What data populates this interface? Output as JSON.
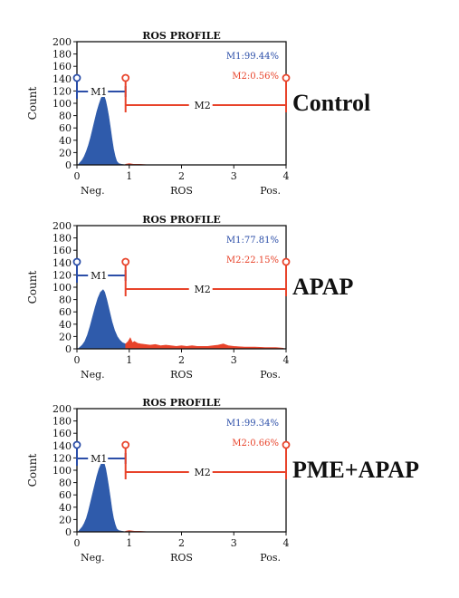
{
  "colors": {
    "m1": "#2b4ea8",
    "m2": "#e8432a",
    "hist": "#2f5bab",
    "hist_m2": "#e8432a",
    "axis": "#111111"
  },
  "chart_data": [
    {
      "type": "area",
      "title": "ROS PROFILE",
      "condition": "Control",
      "xlabel": "ROS",
      "ylabel": "Count",
      "xlim": [
        0,
        4
      ],
      "ylim": [
        0,
        200
      ],
      "x_ticks": [
        "0",
        "1",
        "2",
        "3",
        "4"
      ],
      "y_ticks": [
        "0",
        "20",
        "40",
        "60",
        "80",
        "100",
        "120",
        "140",
        "160",
        "180",
        "200"
      ],
      "x_end_labels": [
        "Neg.",
        "Pos."
      ],
      "markers": [
        {
          "name": "M1",
          "range": [
            0,
            0.93
          ],
          "stat": "M1:99.44%"
        },
        {
          "name": "M2",
          "range": [
            0.93,
            4.0
          ],
          "stat": "M2:0.56%"
        }
      ],
      "series": [
        {
          "points": [
            [
              0.02,
              0
            ],
            [
              0.06,
              4
            ],
            [
              0.1,
              8
            ],
            [
              0.14,
              14
            ],
            [
              0.18,
              22
            ],
            [
              0.22,
              32
            ],
            [
              0.26,
              44
            ],
            [
              0.3,
              58
            ],
            [
              0.34,
              72
            ],
            [
              0.38,
              86
            ],
            [
              0.42,
              98
            ],
            [
              0.46,
              108
            ],
            [
              0.5,
              114
            ],
            [
              0.52,
              112
            ],
            [
              0.55,
              104
            ],
            [
              0.58,
              92
            ],
            [
              0.61,
              78
            ],
            [
              0.64,
              60
            ],
            [
              0.67,
              42
            ],
            [
              0.7,
              26
            ],
            [
              0.73,
              14
            ],
            [
              0.76,
              6
            ],
            [
              0.8,
              2
            ],
            [
              0.85,
              1
            ],
            [
              0.93,
              0
            ]
          ]
        },
        {
          "points": [
            [
              0.93,
              1
            ],
            [
              1.0,
              2
            ],
            [
              1.08,
              1
            ],
            [
              1.2,
              1
            ],
            [
              1.4,
              0
            ],
            [
              4.0,
              0
            ]
          ]
        }
      ]
    },
    {
      "type": "area",
      "title": "ROS PROFILE",
      "condition": "APAP",
      "xlabel": "ROS",
      "ylabel": "Count",
      "xlim": [
        0,
        4
      ],
      "ylim": [
        0,
        200
      ],
      "x_ticks": [
        "0",
        "1",
        "2",
        "3",
        "4"
      ],
      "y_ticks": [
        "0",
        "20",
        "40",
        "60",
        "80",
        "100",
        "120",
        "140",
        "160",
        "180",
        "200"
      ],
      "x_end_labels": [
        "Neg.",
        "Pos."
      ],
      "markers": [
        {
          "name": "M1",
          "range": [
            0,
            0.93
          ],
          "stat": "M1:77.81%"
        },
        {
          "name": "M2",
          "range": [
            0.93,
            4.0
          ],
          "stat": "M2:22.15%"
        }
      ],
      "series": [
        {
          "points": [
            [
              0.02,
              0
            ],
            [
              0.06,
              3
            ],
            [
              0.1,
              6
            ],
            [
              0.15,
              12
            ],
            [
              0.2,
              22
            ],
            [
              0.25,
              36
            ],
            [
              0.3,
              52
            ],
            [
              0.35,
              68
            ],
            [
              0.4,
              82
            ],
            [
              0.45,
              92
            ],
            [
              0.5,
              96
            ],
            [
              0.53,
              92
            ],
            [
              0.57,
              80
            ],
            [
              0.62,
              62
            ],
            [
              0.67,
              44
            ],
            [
              0.72,
              30
            ],
            [
              0.77,
              20
            ],
            [
              0.82,
              14
            ],
            [
              0.87,
              10
            ],
            [
              0.93,
              8
            ]
          ]
        },
        {
          "points": [
            [
              0.93,
              8
            ],
            [
              0.98,
              12
            ],
            [
              1.02,
              18
            ],
            [
              1.06,
              10
            ],
            [
              1.1,
              12
            ],
            [
              1.16,
              9
            ],
            [
              1.22,
              8
            ],
            [
              1.3,
              7
            ],
            [
              1.4,
              6
            ],
            [
              1.5,
              7
            ],
            [
              1.6,
              5
            ],
            [
              1.7,
              6
            ],
            [
              1.8,
              5
            ],
            [
              1.9,
              4
            ],
            [
              2.0,
              5
            ],
            [
              2.1,
              4
            ],
            [
              2.2,
              5
            ],
            [
              2.3,
              4
            ],
            [
              2.4,
              4
            ],
            [
              2.5,
              4
            ],
            [
              2.6,
              5
            ],
            [
              2.7,
              6
            ],
            [
              2.8,
              8
            ],
            [
              2.9,
              5
            ],
            [
              3.0,
              4
            ],
            [
              3.2,
              3
            ],
            [
              3.4,
              3
            ],
            [
              3.6,
              2
            ],
            [
              3.8,
              2
            ],
            [
              3.95,
              1
            ]
          ]
        }
      ]
    },
    {
      "type": "area",
      "title": "ROS PROFILE",
      "condition": "PME+APAP",
      "xlabel": "ROS",
      "ylabel": "Count",
      "xlim": [
        0,
        4
      ],
      "ylim": [
        0,
        200
      ],
      "x_ticks": [
        "0",
        "1",
        "2",
        "3",
        "4"
      ],
      "y_ticks": [
        "0",
        "20",
        "40",
        "60",
        "80",
        "100",
        "120",
        "140",
        "160",
        "180",
        "200"
      ],
      "x_end_labels": [
        "Neg.",
        "Pos."
      ],
      "markers": [
        {
          "name": "M1",
          "range": [
            0,
            0.93
          ],
          "stat": "M1:99.34%"
        },
        {
          "name": "M2",
          "range": [
            0.93,
            4.0
          ],
          "stat": "M2:0.66%"
        }
      ],
      "series": [
        {
          "points": [
            [
              0.02,
              0
            ],
            [
              0.06,
              4
            ],
            [
              0.1,
              8
            ],
            [
              0.14,
              14
            ],
            [
              0.18,
              22
            ],
            [
              0.22,
              34
            ],
            [
              0.26,
              48
            ],
            [
              0.3,
              62
            ],
            [
              0.34,
              76
            ],
            [
              0.38,
              90
            ],
            [
              0.42,
              102
            ],
            [
              0.46,
              110
            ],
            [
              0.5,
              116
            ],
            [
              0.52,
              112
            ],
            [
              0.55,
              102
            ],
            [
              0.58,
              88
            ],
            [
              0.61,
              72
            ],
            [
              0.64,
              54
            ],
            [
              0.67,
              36
            ],
            [
              0.7,
              22
            ],
            [
              0.73,
              12
            ],
            [
              0.76,
              5
            ],
            [
              0.8,
              2
            ],
            [
              0.86,
              1
            ],
            [
              0.93,
              0
            ]
          ]
        },
        {
          "points": [
            [
              0.93,
              1
            ],
            [
              1.0,
              2
            ],
            [
              1.1,
              1
            ],
            [
              1.2,
              1
            ],
            [
              1.4,
              0
            ],
            [
              4.0,
              0
            ]
          ]
        }
      ]
    }
  ]
}
